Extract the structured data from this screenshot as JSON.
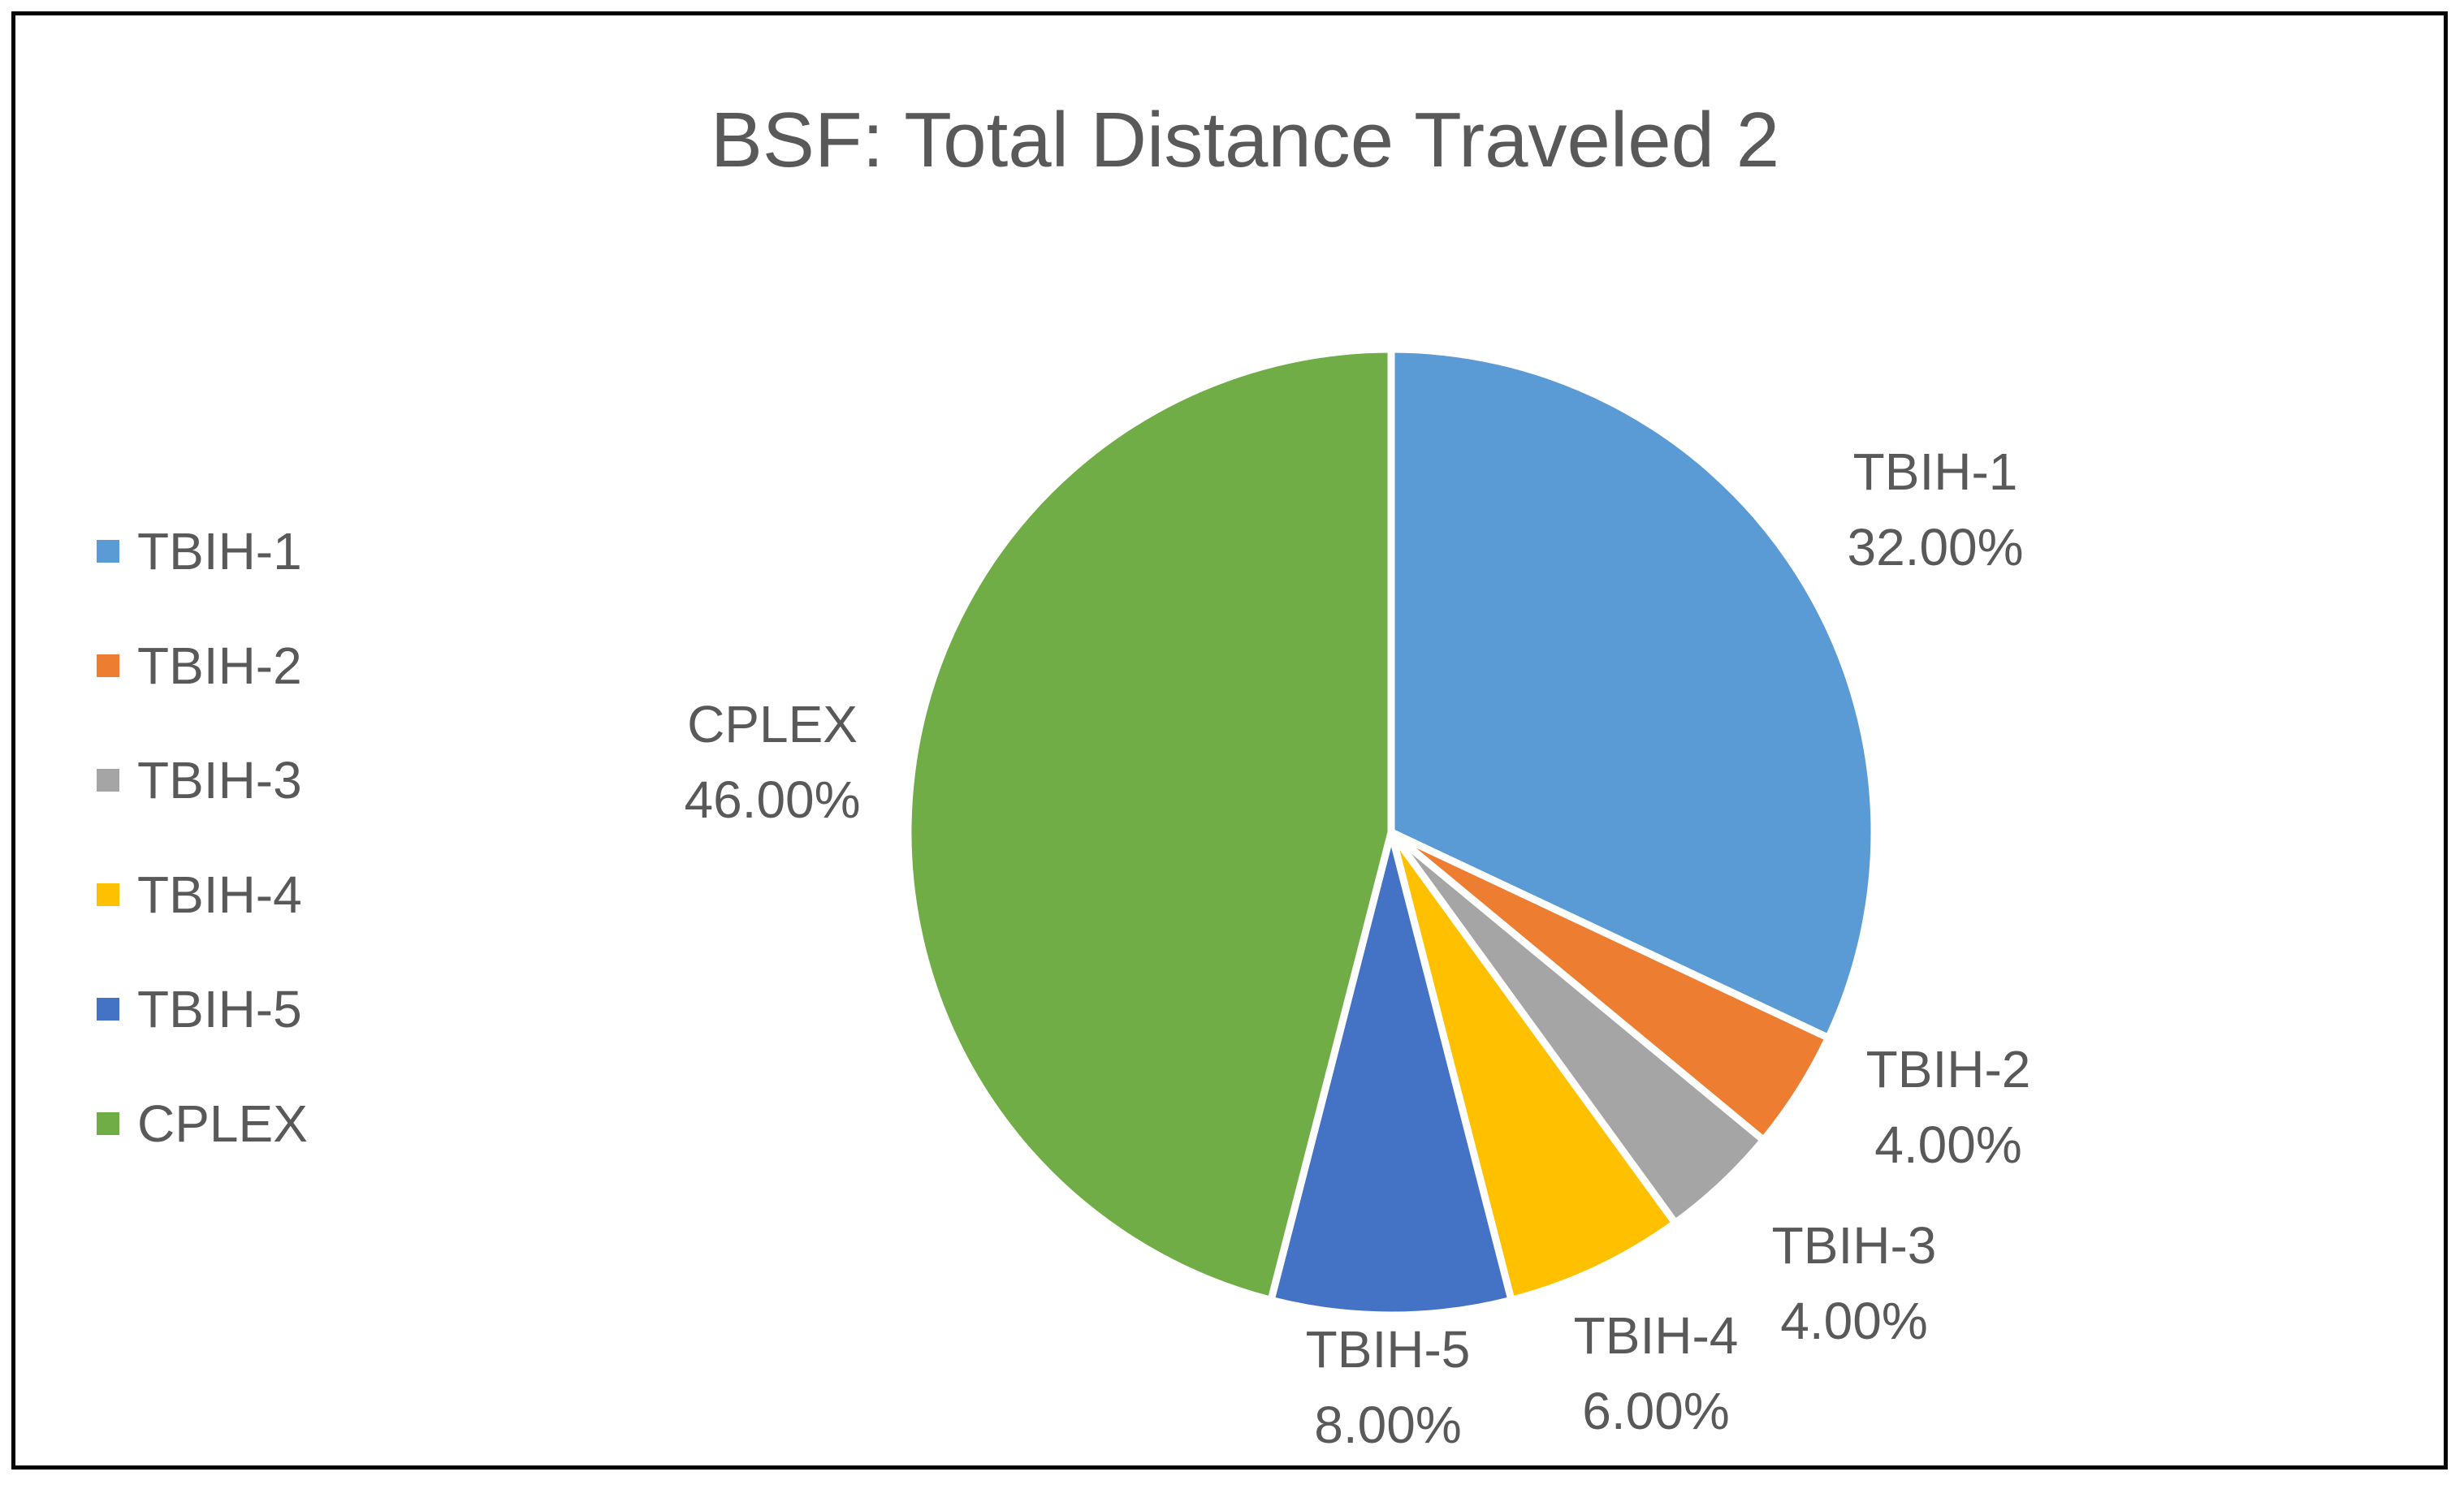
{
  "chart_data": {
    "type": "pie",
    "title": "BSF: Total Distance Traveled 2",
    "categories": [
      "TBIH-1",
      "TBIH-2",
      "TBIH-3",
      "TBIH-4",
      "TBIH-5",
      "CPLEX"
    ],
    "values": [
      32.0,
      4.0,
      4.0,
      6.0,
      8.0,
      46.0
    ],
    "value_labels": [
      "32.00%",
      "4.00%",
      "4.00%",
      "6.00%",
      "8.00%",
      "46.00%"
    ],
    "colors": [
      "#5B9BD5",
      "#ED7D31",
      "#A5A5A5",
      "#FFC000",
      "#4472C4",
      "#70AD47"
    ],
    "legend": {
      "position": "left",
      "entries": [
        "TBIH-1",
        "TBIH-2",
        "TBIH-3",
        "TBIH-4",
        "TBIH-5",
        "CPLEX"
      ]
    },
    "start_angle": "12 o'clock, clockwise"
  }
}
